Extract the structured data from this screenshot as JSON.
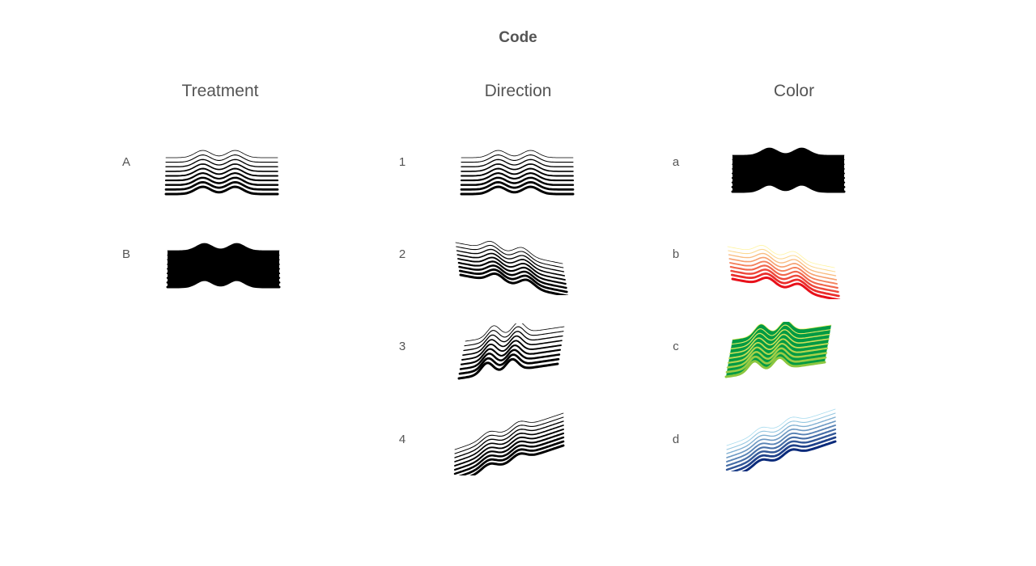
{
  "title": "Code",
  "columns": [
    {
      "key": "treatment",
      "header": "Treatment",
      "rows": [
        {
          "label": "A",
          "style": "lines",
          "direction": 1,
          "palette": "black"
        },
        {
          "label": "B",
          "style": "filled",
          "direction": 1,
          "palette": "black"
        }
      ]
    },
    {
      "key": "direction",
      "header": "Direction",
      "rows": [
        {
          "label": "1",
          "style": "lines",
          "direction": 1,
          "palette": "black"
        },
        {
          "label": "2",
          "style": "lines",
          "direction": 2,
          "palette": "black"
        },
        {
          "label": "3",
          "style": "lines",
          "direction": 3,
          "palette": "black"
        },
        {
          "label": "4",
          "style": "lines",
          "direction": 4,
          "palette": "black"
        }
      ]
    },
    {
      "key": "color",
      "header": "Color",
      "rows": [
        {
          "label": "a",
          "style": "filled",
          "direction": 1,
          "palette": "black"
        },
        {
          "label": "b",
          "style": "lines",
          "direction": 2,
          "palette": "yellow-red"
        },
        {
          "label": "c",
          "style": "filled-green",
          "direction": 3,
          "palette": "yellow-green"
        },
        {
          "label": "d",
          "style": "lines",
          "direction": 4,
          "palette": "light-blue-navy"
        }
      ]
    }
  ],
  "colors": {
    "black": [
      "#000000",
      "#000000"
    ],
    "yellow-red": [
      "#fff4a0",
      "#e8101a"
    ],
    "yellow-green": [
      "#f4f06a",
      "#8cc63f"
    ],
    "fill-green": "#009a44",
    "light-blue-navy": [
      "#a8dcef",
      "#0a2a7a"
    ]
  }
}
